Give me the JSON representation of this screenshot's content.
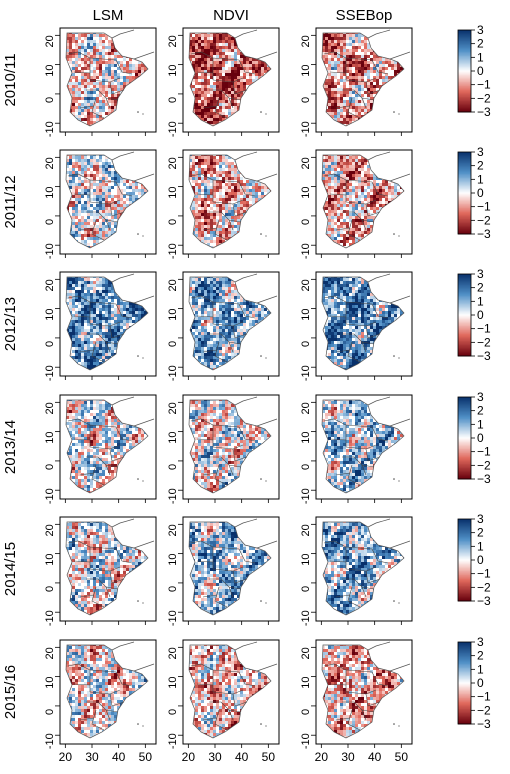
{
  "figure": {
    "column_headers": [
      "LSM",
      "NDVI",
      "SSEBop"
    ],
    "row_labels": [
      "2010/11",
      "2011/12",
      "2012/13",
      "2013/14",
      "2014/15",
      "2015/16"
    ],
    "y_ticks": [
      -10,
      0,
      10,
      20
    ],
    "x_ticks": [
      20,
      30,
      40,
      50
    ],
    "colorbar_ticks": [
      3,
      2,
      1,
      0,
      -1,
      -2,
      -3
    ],
    "colorbar_tick_labels": [
      "3",
      "2",
      "1",
      "0",
      "−1",
      "−2",
      "−3"
    ],
    "colormap": {
      "positive_dark": "#08306b",
      "positive_mid": "#4f8fc6",
      "neutral": "#ffffff",
      "negative_mid": "#e0685c",
      "negative_dark": "#67000d"
    },
    "panel_tendency": [
      [
        -0.2,
        -0.9,
        -0.6
      ],
      [
        0.1,
        -0.4,
        -0.4
      ],
      [
        0.8,
        0.6,
        0.9
      ],
      [
        0.1,
        0.0,
        0.4
      ],
      [
        0.1,
        0.5,
        0.6
      ],
      [
        -0.1,
        -0.3,
        -0.4
      ]
    ]
  }
}
